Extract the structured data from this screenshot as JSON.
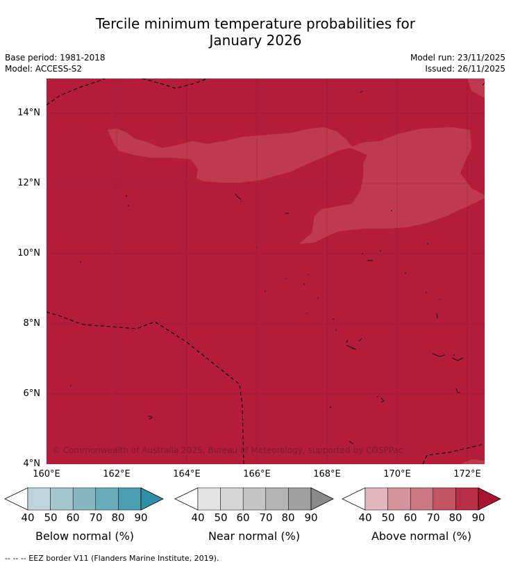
{
  "title_line1": "Tercile minimum temperature probabilities for",
  "title_line2": "January 2026",
  "meta": {
    "base_period": "Base period: 1981-2018",
    "model": "Model: ACCESS-S2",
    "model_run": "Model run: 23/11/2025",
    "issued": "Issued: 26/11/2025"
  },
  "map": {
    "lat_labels": [
      "14°N",
      "12°N",
      "10°N",
      "8°N",
      "6°N",
      "4°N"
    ],
    "lon_labels": [
      "160°E",
      "162°E",
      "164°E",
      "166°E",
      "168°E",
      "170°E",
      "172°E"
    ],
    "colors": {
      "above_80_90": "#b41d39",
      "above_70_80": "#bf3a4f",
      "grid": "#5a0f1d",
      "eez": "#000000",
      "coast": "#000000"
    }
  },
  "copyright": "© Commonwealth of Australia 2025, Bureau of Meteorology, supported by COSPPac",
  "colorbars": [
    {
      "title": "Below normal (%)",
      "labels": [
        "40",
        "50",
        "60",
        "70",
        "80",
        "90"
      ],
      "colors": [
        "#bfd4da",
        "#a5c6cc",
        "#88b7c2",
        "#6aacba",
        "#4c9fb1",
        "#2d8fa6"
      ]
    },
    {
      "title": "Near normal (%)",
      "labels": [
        "40",
        "50",
        "60",
        "70",
        "80",
        "90"
      ],
      "colors": [
        "#e4e4e4",
        "#d6d6d6",
        "#c6c6c6",
        "#b4b4b4",
        "#a0a0a0",
        "#8a8a8a"
      ]
    },
    {
      "title": "Above normal (%)",
      "labels": [
        "40",
        "50",
        "60",
        "70",
        "80",
        "90"
      ],
      "colors": [
        "#e1b7bd",
        "#d6949d",
        "#cc7782",
        "#c25464",
        "#b82e46",
        "#aa1431"
      ]
    }
  ],
  "footnote": "--  --  -- EEZ border V11 (Flanders Marine Institute, 2019)."
}
